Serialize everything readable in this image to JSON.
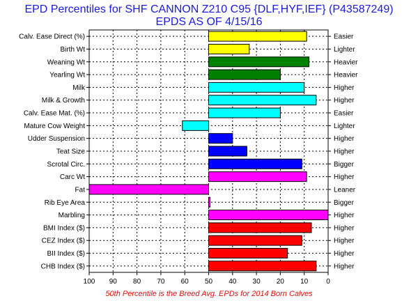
{
  "chart_data": {
    "type": "bar",
    "title": "EPD Percentiles for SHF CANNON Z210 C95 {DLF,HYF,IEF} (P43587249)",
    "subtitle": "EPDS AS OF 4/15/16",
    "footnote": "50th Percentile is the Breed Avg. EPDs for 2014 Born Calves",
    "orientation": "horizontal",
    "baseline": 50,
    "xlim": [
      100,
      0
    ],
    "x_reversed": true,
    "xticks": [
      "100",
      "90",
      "80",
      "70",
      "60",
      "50",
      "40",
      "30",
      "20",
      "10",
      "0"
    ],
    "xtick_values": [
      100,
      90,
      80,
      70,
      60,
      50,
      40,
      30,
      20,
      10,
      0
    ],
    "grid": true,
    "categories": [
      "Calv. Ease Direct (%)",
      "Birth Wt",
      "Weaning Wt",
      "Yearling Wt",
      "Milk",
      "Milk & Growth",
      "Calv. Ease Mat. (%)",
      "Mature Cow Weight",
      "Udder Suspension",
      "Teat Size",
      "Scrotal Circ.",
      "Carc Wt",
      "Fat",
      "Rib Eye Area",
      "Marbling",
      "BMI Index ($)",
      "CEZ Index ($)",
      "BII Index ($)",
      "CHB Index ($)"
    ],
    "values": [
      9,
      33,
      8,
      20,
      10,
      5,
      20,
      61,
      40,
      34,
      11,
      9,
      100,
      50,
      0,
      7,
      11,
      17,
      5
    ],
    "colors": [
      "#ffff00",
      "#ffff00",
      "#008000",
      "#008000",
      "#00ffff",
      "#00ffff",
      "#00ffff",
      "#00ffff",
      "#0000ff",
      "#0000ff",
      "#0000ff",
      "#ff00ff",
      "#ff00ff",
      "#ff00ff",
      "#ff00ff",
      "#ff0000",
      "#ff0000",
      "#ff0000",
      "#ff0000"
    ],
    "right_labels": [
      "Easier",
      "Lighter",
      "Heavier",
      "Heavier",
      "Higher",
      "Higher",
      "Easier",
      "Lighter",
      "Higher",
      "Higher",
      "Bigger",
      "Higher",
      "Leaner",
      "Bigger",
      "Higher",
      "Higher",
      "Higher",
      "Higher",
      "Higher"
    ]
  }
}
